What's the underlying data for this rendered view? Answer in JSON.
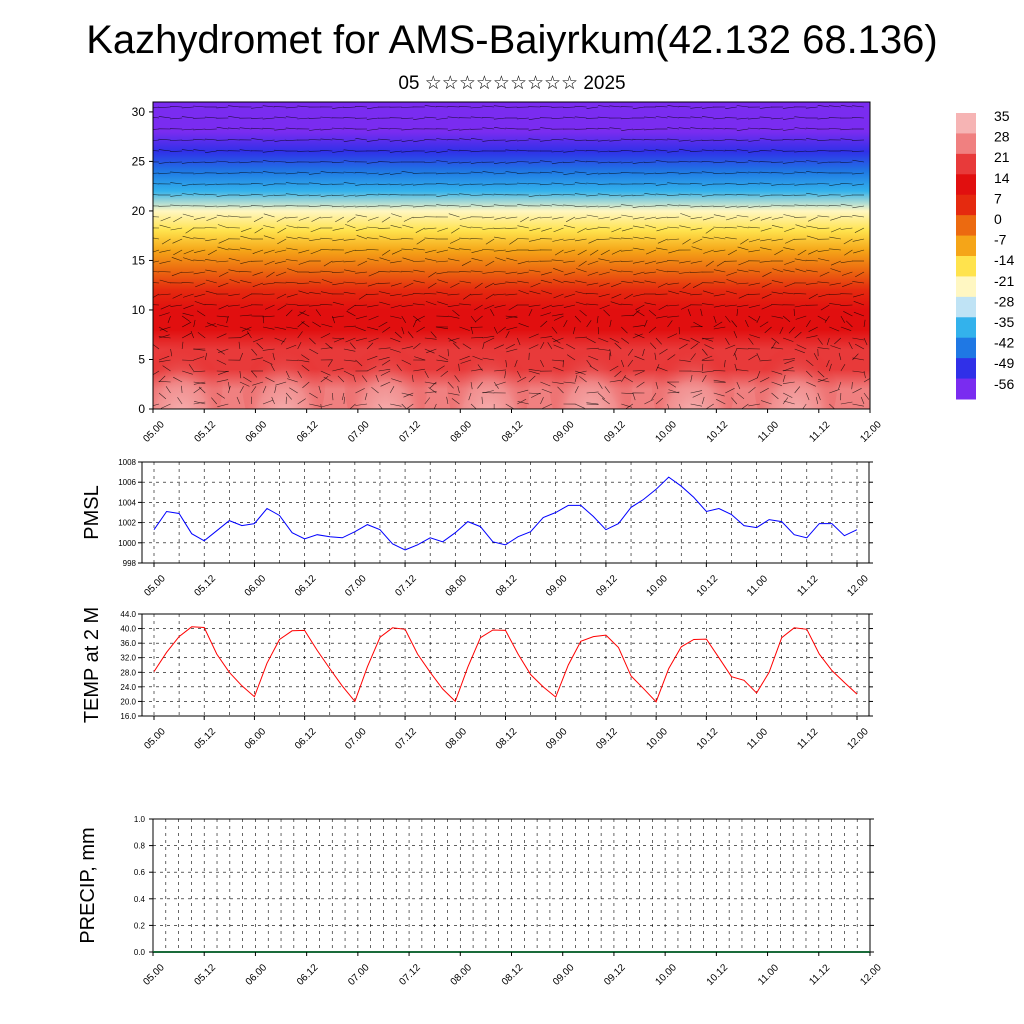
{
  "title": "Kazhydromet for AMS-Baiyrkum(42.132 68.136)",
  "subtitle": "05 ☆☆☆☆☆☆☆☆☆ 2025",
  "chart_data": [
    {
      "type": "heatmap",
      "panel": "cross-section",
      "ylabel": "",
      "yticks": [
        0,
        5,
        10,
        15,
        20,
        25,
        30
      ],
      "ylim": [
        0,
        31
      ],
      "xticks": [
        "05.00",
        "05.12",
        "06.00",
        "06.12",
        "07.00",
        "07.12",
        "08.00",
        "08.12",
        "09.00",
        "09.12",
        "10.00",
        "10.12",
        "11.00",
        "11.12",
        "12.00"
      ],
      "colorbar_labels": [
        "35",
        "28",
        "21",
        "14",
        "7",
        "0",
        "-7",
        "-14",
        "-21",
        "-28",
        "-35",
        "-42",
        "-49",
        "-56"
      ],
      "colorbar_colors": [
        "#f6b4b4",
        "#f08080",
        "#e83a3a",
        "#e10f0f",
        "#e52a0f",
        "#ec6a10",
        "#f5a518",
        "#ffe34d",
        "#fff7c2",
        "#bfe3f5",
        "#33b2ec",
        "#1f78e4",
        "#3030e8",
        "#7a2cf0"
      ],
      "temperature_levels_k": [
        0,
        2,
        4,
        6,
        8,
        10,
        12,
        14,
        16,
        18,
        20,
        22,
        24,
        26,
        28,
        30
      ],
      "temperature_profile": [
        30,
        27,
        22,
        20,
        16,
        12,
        7,
        1,
        -6,
        -14,
        -24,
        -33,
        -44,
        -52,
        -56,
        -56
      ]
    },
    {
      "type": "line",
      "ylabel": "PMSL",
      "ylim": [
        998,
        1008
      ],
      "yticks": [
        "998",
        "1000",
        "1002",
        "1004",
        "1006",
        "1008"
      ],
      "xticks": [
        "05.00",
        "05.12",
        "06.00",
        "06.12",
        "07.00",
        "07.12",
        "08.00",
        "08.12",
        "09.00",
        "09.12",
        "10.00",
        "10.12",
        "11.00",
        "11.12",
        "12.00"
      ],
      "color": "#0000ff",
      "values": [
        1001.3,
        1003.1,
        1002.9,
        1000.9,
        1000.2,
        1001.2,
        1002.2,
        1001.7,
        1001.9,
        1003.4,
        1002.7,
        1001.0,
        1000.4,
        1000.8,
        1000.6,
        1000.5,
        1001.1,
        1001.8,
        1001.3,
        999.9,
        999.3,
        999.8,
        1000.5,
        1000.1,
        1001.0,
        1002.1,
        1001.6,
        1000.1,
        999.8,
        1000.6,
        1001.1,
        1002.5,
        1003.0,
        1003.7,
        1003.7,
        1002.6,
        1001.3,
        1001.9,
        1003.5,
        1004.3,
        1005.3,
        1006.5,
        1005.6,
        1004.5,
        1003.1,
        1003.4,
        1002.8,
        1001.7,
        1001.5,
        1002.3,
        1002.1,
        1000.8,
        1000.5,
        1001.9,
        1001.9,
        1000.7,
        1001.3
      ]
    },
    {
      "type": "line",
      "ylabel": "TEMP at 2 M",
      "ylim": [
        16,
        44
      ],
      "yticks": [
        "16.0",
        "20.0",
        "24.0",
        "28.0",
        "32.0",
        "36.0",
        "40.0",
        "44.0"
      ],
      "xticks": [
        "05.00",
        "05.12",
        "06.00",
        "06.12",
        "07.00",
        "07.12",
        "08.00",
        "08.12",
        "09.00",
        "09.12",
        "10.00",
        "10.12",
        "11.00",
        "11.12",
        "12.00"
      ],
      "color": "#ff0000",
      "values": [
        28.2,
        33.5,
        37.8,
        40.5,
        40.3,
        33.0,
        28.0,
        24.3,
        21.3,
        30.5,
        37.0,
        39.4,
        39.5,
        34.0,
        29.0,
        24.2,
        20.0,
        29.5,
        37.6,
        40.2,
        39.8,
        33.0,
        28.0,
        23.4,
        20.0,
        29.4,
        37.5,
        39.6,
        39.5,
        33.0,
        27.4,
        24.0,
        21.2,
        30.0,
        36.5,
        37.8,
        38.2,
        34.8,
        27.0,
        23.5,
        19.9,
        29.0,
        35.0,
        37.0,
        37.1,
        32.0,
        26.8,
        25.8,
        22.3,
        28.0,
        37.5,
        40.2,
        39.8,
        33.0,
        28.5,
        25.2,
        22.0
      ]
    },
    {
      "type": "bar",
      "ylabel": "PRECIP, mm",
      "ylim": [
        0,
        1
      ],
      "yticks": [
        "0.0",
        "0.2",
        "0.4",
        "0.6",
        "0.8",
        "1.0"
      ],
      "xticks": [
        "05.00",
        "05.12",
        "06.00",
        "06.12",
        "07.00",
        "07.12",
        "08.00",
        "08.12",
        "09.00",
        "09.12",
        "10.00",
        "10.12",
        "11.00",
        "11.12",
        "12.00"
      ],
      "values": [
        0,
        0,
        0,
        0,
        0,
        0,
        0,
        0,
        0,
        0,
        0,
        0,
        0,
        0,
        0,
        0,
        0,
        0,
        0,
        0,
        0,
        0,
        0,
        0,
        0,
        0,
        0,
        0,
        0,
        0,
        0,
        0,
        0,
        0,
        0,
        0,
        0,
        0,
        0,
        0,
        0,
        0,
        0,
        0,
        0,
        0,
        0,
        0,
        0,
        0,
        0,
        0,
        0,
        0,
        0,
        0,
        0
      ]
    }
  ]
}
